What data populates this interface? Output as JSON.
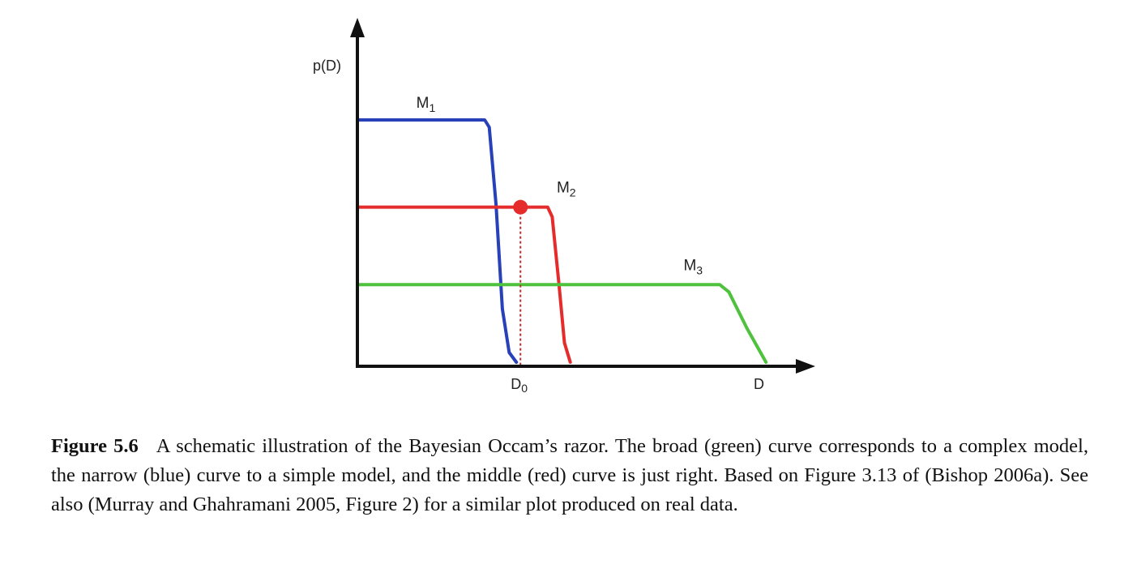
{
  "chart_data": {
    "type": "line",
    "ylabel": "p(D)",
    "xlabel": "D",
    "x_ticks": [
      {
        "label": "D",
        "sub": "0",
        "x": 0.36
      }
    ],
    "xlim": [
      0,
      1.0
    ],
    "ylim": [
      0,
      1.0
    ],
    "grid": false,
    "legend": "none",
    "series": [
      {
        "name": "M",
        "name_sub": "1",
        "color": "#2840b8",
        "x": [
          0,
          0.281,
          0.291,
          0.306,
          0.32,
          0.335,
          0.351
        ],
        "y": [
          1.0,
          1.0,
          0.97,
          0.65,
          0.22,
          0.04,
          0.0
        ],
        "label_x": 0.13,
        "label_y": 1.05
      },
      {
        "name": "M",
        "name_sub": "2",
        "color": "#e52b2b",
        "x": [
          0,
          0.42,
          0.43,
          0.445,
          0.457,
          0.47
        ],
        "y": [
          0.64,
          0.64,
          0.6,
          0.32,
          0.08,
          0.0
        ],
        "label_x": 0.44,
        "label_y": 0.7
      },
      {
        "name": "M",
        "name_sub": "3",
        "color": "#4ec23c",
        "x": [
          0,
          0.8,
          0.82,
          0.86,
          0.902
        ],
        "y": [
          0.32,
          0.32,
          0.29,
          0.14,
          0.0
        ],
        "label_x": 0.72,
        "label_y": 0.38
      }
    ],
    "marker": {
      "x": 0.36,
      "y": 0.64,
      "color": "#e52b2b"
    }
  },
  "caption": {
    "figure_number": "Figure 5.6",
    "text": "A schematic illustration of the Bayesian Occam’s razor. The broad (green) curve corresponds to a complex model, the narrow (blue) curve to a simple model, and the middle (red) curve is just right. Based on Figure 3.13 of (Bishop 2006a). See also (Murray and Ghahramani 2005, Figure 2) for a similar plot produced on real data."
  }
}
